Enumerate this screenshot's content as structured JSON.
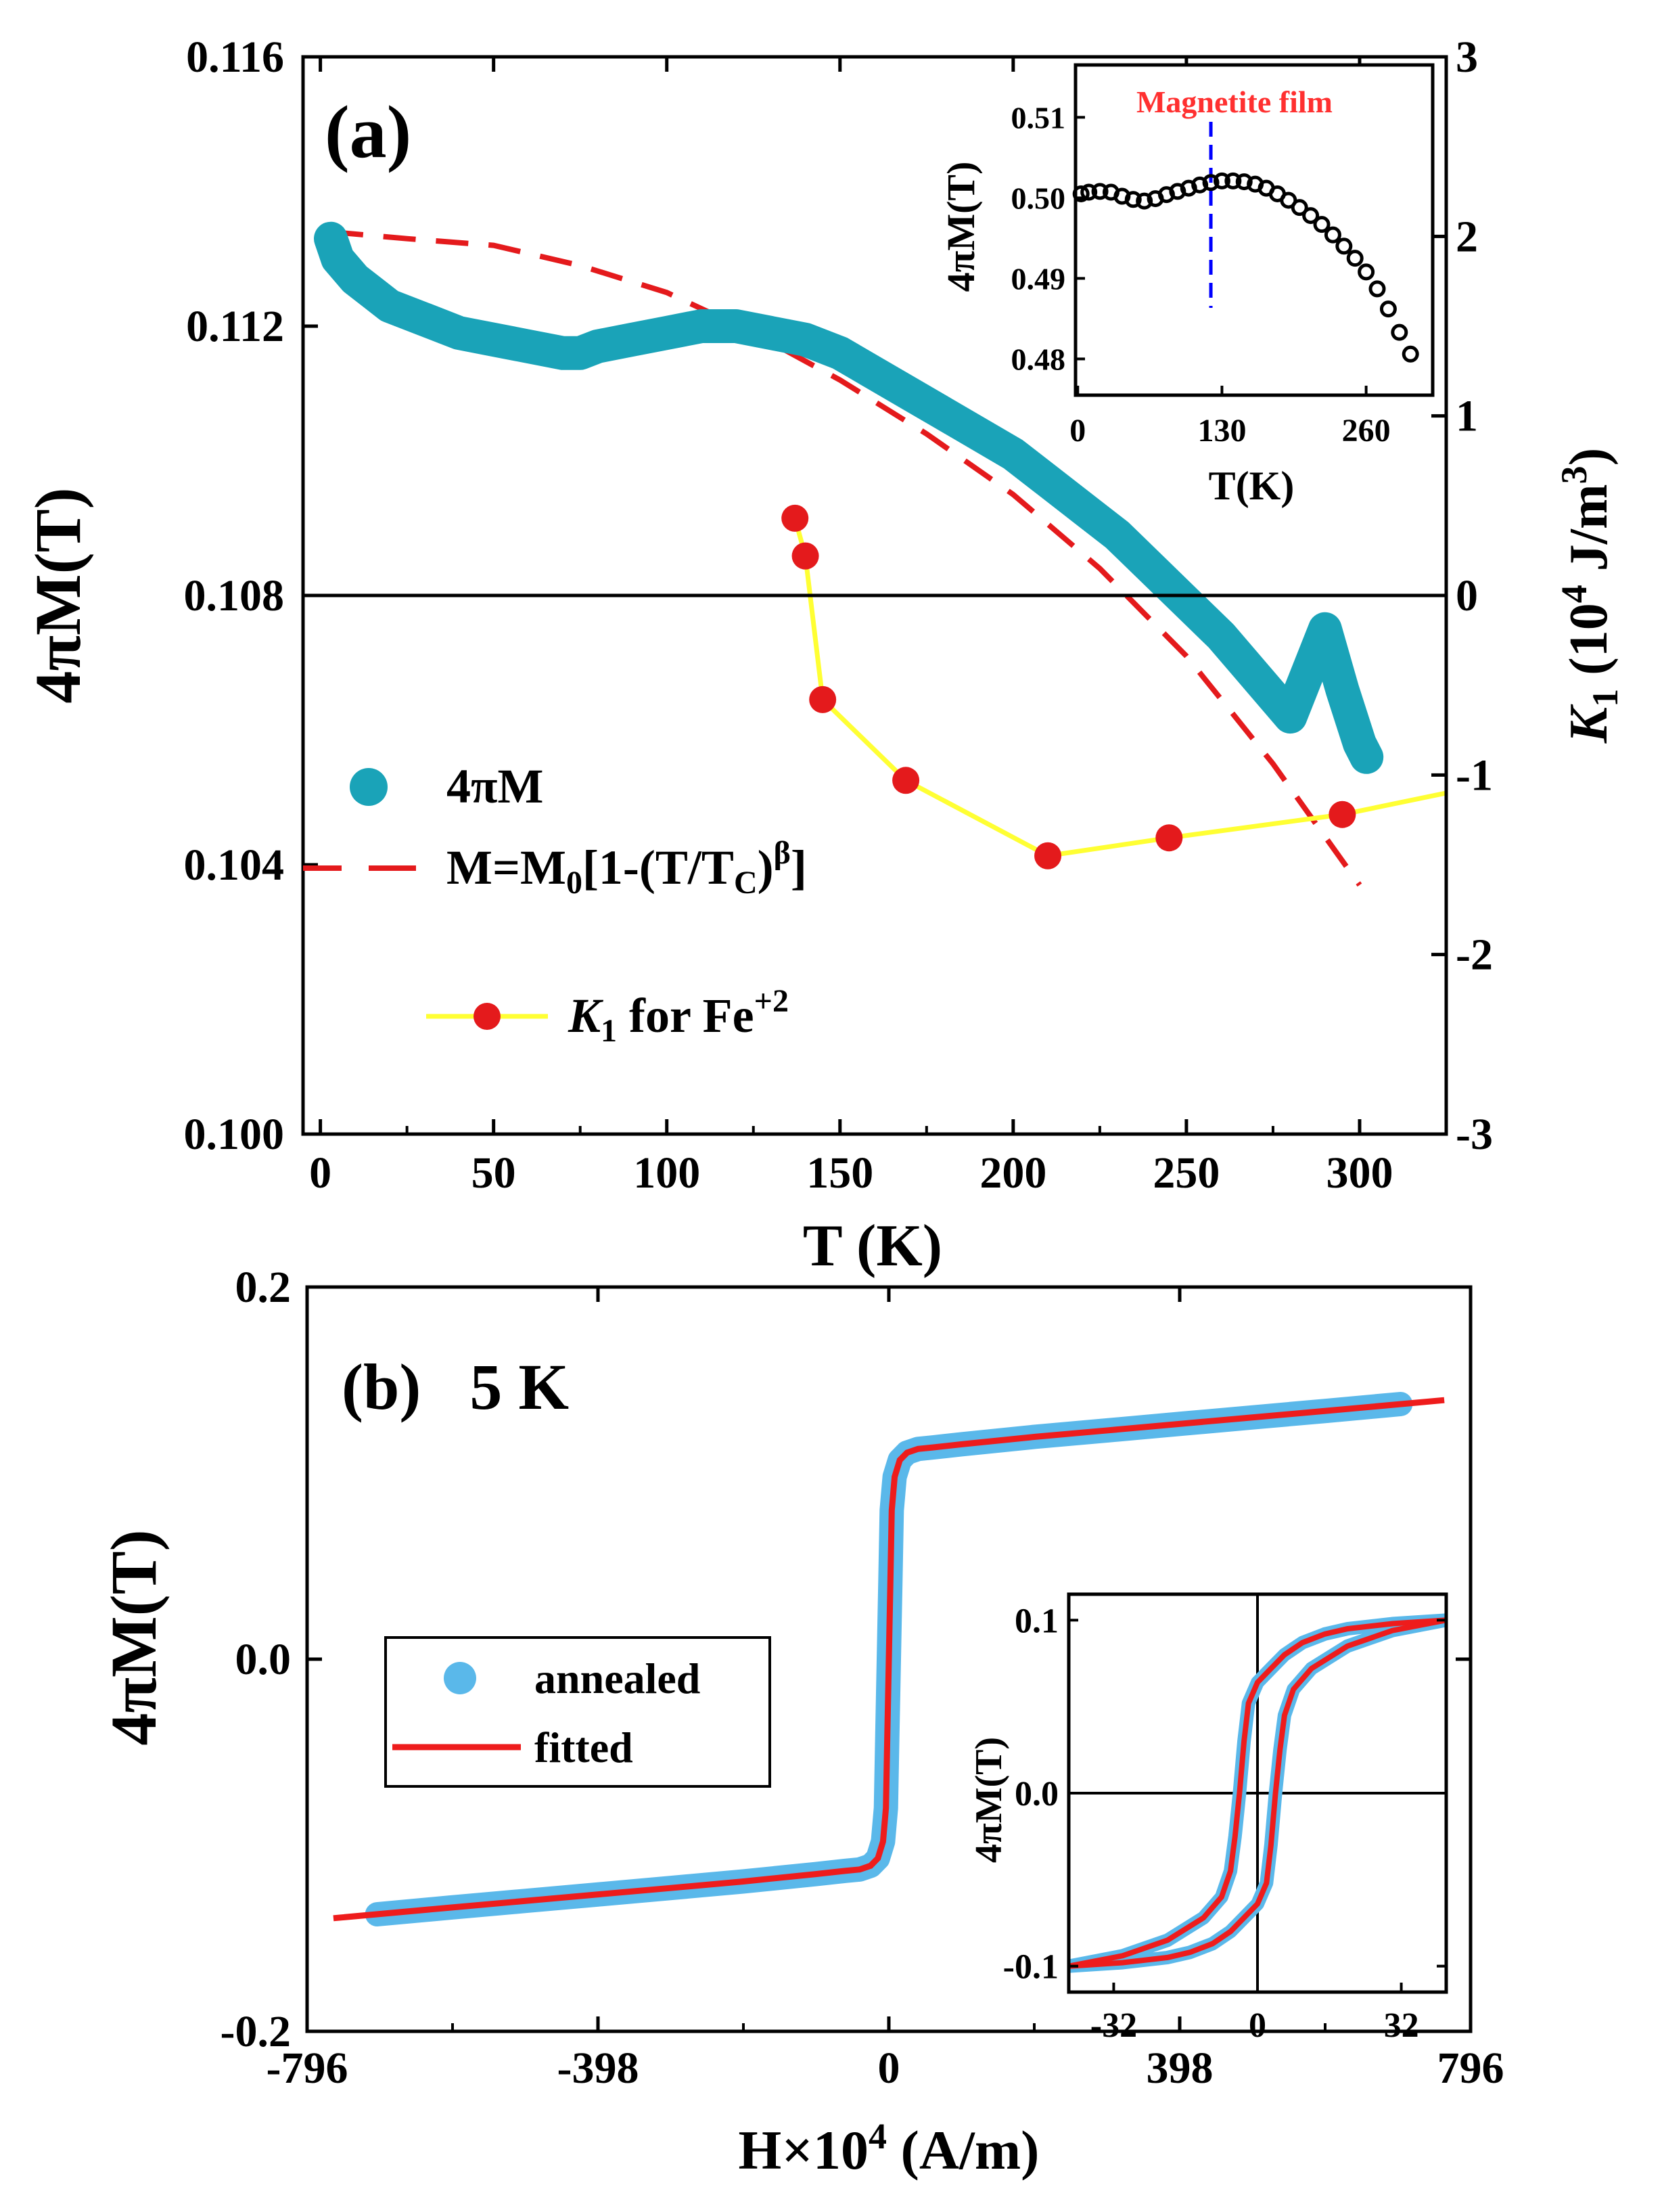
{
  "figure": {
    "colors": {
      "teal": "#1aa3b8",
      "red_dash": "#e41a1c",
      "k1_line": "#ffff33",
      "k1_marker": "#e41a1c",
      "annealed": "#5ab8ea",
      "fitted": "#ee1c1c",
      "inset_data": "#000000",
      "inset_line": "#0000ff",
      "inset_label": "#ff3030"
    }
  },
  "chart_data": [
    {
      "id": "panel-a",
      "type": "scatter",
      "panel_label": "(a)",
      "xlabel": "T (K)",
      "ylabel": "4πM(T)",
      "y2label": "K",
      "y2label_sub": "1",
      "y2label_unit": " (10",
      "y2label_exp": "4",
      "y2label_unit2": " J/m",
      "y2label_exp2": "3",
      "y2label_close": ")",
      "xlim": [
        -5,
        325
      ],
      "ylim": [
        0.1,
        0.116
      ],
      "y2lim": [
        -3,
        3
      ],
      "xticks": [
        0,
        50,
        100,
        150,
        200,
        250,
        300
      ],
      "xtick_labels": [
        "0",
        "50",
        "100",
        "150",
        "200",
        "250",
        "300"
      ],
      "yticks": [
        0.1,
        0.104,
        0.108,
        0.112,
        0.116
      ],
      "ytick_labels": [
        "0.100",
        "0.104",
        "0.108",
        "0.112",
        "0.116"
      ],
      "y2ticks": [
        -3,
        -2,
        -1,
        0,
        1,
        2,
        3
      ],
      "y2tick_labels": [
        "-3",
        "-2",
        "-1",
        "0",
        "1",
        "2",
        "3"
      ],
      "series": [
        {
          "name": "4πM",
          "kind": "thick-scatter",
          "x": [
            3,
            5,
            10,
            15,
            20,
            30,
            40,
            50,
            60,
            70,
            75,
            80,
            90,
            100,
            110,
            120,
            130,
            140,
            150,
            160,
            170,
            180,
            190,
            200,
            210,
            220,
            230,
            240,
            250,
            260,
            270,
            280,
            290,
            295,
            300,
            302
          ],
          "y": [
            0.1133,
            0.113,
            0.1127,
            0.1125,
            0.1123,
            0.1121,
            0.1119,
            0.1118,
            0.1117,
            0.1116,
            0.1116,
            0.1117,
            0.1118,
            0.1119,
            0.112,
            0.112,
            0.1119,
            0.1118,
            0.1116,
            0.1113,
            0.111,
            0.1107,
            0.1104,
            0.1101,
            0.1097,
            0.1093,
            0.1089,
            0.1084,
            0.1079,
            0.1074,
            0.1068,
            0.1062,
            0.1075,
            0.1066,
            0.1058,
            0.1056
          ]
        },
        {
          "name": "M=M0[1-(T/TC)^β]",
          "kind": "dashed-line",
          "x": [
            3,
            25,
            50,
            75,
            100,
            125,
            150,
            175,
            200,
            225,
            250,
            275,
            300
          ],
          "y": [
            0.1134,
            0.1133,
            0.1132,
            0.1129,
            0.1125,
            0.1119,
            0.1112,
            0.1104,
            0.1095,
            0.1084,
            0.1071,
            0.1055,
            0.1037
          ]
        },
        {
          "name": "K1 for Fe+2",
          "kind": "line-markers",
          "axis": "y2",
          "x": [
            137,
            140,
            145,
            169,
            210,
            245,
            295,
            325
          ],
          "y": [
            0.43,
            0.22,
            -0.58,
            -1.03,
            -1.45,
            -1.35,
            -1.22,
            -1.1
          ],
          "marker_count": 7
        }
      ],
      "legend": {
        "entries": [
          "4πM",
          "M=M",
          "0",
          "[1-(T/T",
          "C",
          ")",
          "β",
          "]",
          "K",
          "1",
          " for Fe",
          "+2"
        ]
      },
      "inset": {
        "annotation": "Magnetite film",
        "xlabel": "T(K)",
        "ylabel": "4πM(T)",
        "xlim": [
          -2,
          320
        ],
        "ylim": [
          0.4755,
          0.5165
        ],
        "xticks": [
          0,
          130,
          260
        ],
        "xtick_labels": [
          "0",
          "130",
          "260"
        ],
        "yticks": [
          0.48,
          0.49,
          0.5,
          0.51
        ],
        "ytick_labels": [
          "0.48",
          "0.49",
          "0.50",
          "0.51"
        ],
        "vline_x": 120,
        "data": {
          "x": [
            3,
            10,
            20,
            30,
            40,
            50,
            60,
            70,
            80,
            90,
            100,
            110,
            120,
            130,
            140,
            150,
            160,
            170,
            180,
            190,
            200,
            210,
            220,
            230,
            240,
            250,
            260,
            270,
            280,
            290,
            300
          ],
          "y": [
            0.5005,
            0.5007,
            0.5008,
            0.5007,
            0.5002,
            0.4998,
            0.4996,
            0.4999,
            0.5004,
            0.5008,
            0.5012,
            0.5016,
            0.5019,
            0.5021,
            0.5021,
            0.502,
            0.5017,
            0.5012,
            0.5005,
            0.4997,
            0.4988,
            0.4978,
            0.4967,
            0.4954,
            0.494,
            0.4925,
            0.4908,
            0.4887,
            0.4862,
            0.4833,
            0.4806
          ]
        }
      }
    },
    {
      "id": "panel-b",
      "type": "line",
      "panel_label": "(b)   5 K",
      "xlabel_pre": "H×10",
      "xlabel_exp": "4",
      "xlabel_post": " (A/m)",
      "ylabel": "4πM(T)",
      "xlim": [
        -796,
        796
      ],
      "ylim": [
        -0.2,
        0.2
      ],
      "xticks": [
        -796,
        -398,
        0,
        398,
        796
      ],
      "xtick_labels": [
        "-796",
        "-398",
        "0",
        "398",
        "796"
      ],
      "yticks": [
        -0.2,
        0.0,
        0.2
      ],
      "ytick_labels": [
        "-0.2",
        "0.0",
        "0.2"
      ],
      "series": [
        {
          "name": "annealed",
          "kind": "thick-scatter",
          "x": [
            -700,
            -600,
            -500,
            -400,
            -300,
            -200,
            -100,
            -60,
            -40,
            -25,
            -15,
            -8,
            -4,
            -2,
            0,
            2,
            4,
            8,
            15,
            25,
            40,
            60,
            100,
            200,
            300,
            400,
            500,
            600,
            700
          ],
          "y": [
            -0.1371,
            -0.1335,
            -0.13,
            -0.1265,
            -0.123,
            -0.1195,
            -0.1155,
            -0.1138,
            -0.113,
            -0.111,
            -0.107,
            -0.098,
            -0.08,
            -0.04,
            0.0,
            0.04,
            0.08,
            0.098,
            0.107,
            0.111,
            0.113,
            0.1138,
            0.1155,
            0.1195,
            0.123,
            0.1265,
            0.13,
            0.1335,
            0.1371
          ]
        },
        {
          "name": "fitted",
          "kind": "solid-line",
          "x": [
            -760,
            -600,
            -500,
            -400,
            -300,
            -200,
            -100,
            -60,
            -40,
            -25,
            -15,
            -8,
            -4,
            -2,
            0,
            2,
            4,
            8,
            15,
            25,
            40,
            60,
            100,
            200,
            300,
            400,
            500,
            600,
            760
          ],
          "y": [
            -0.1392,
            -0.1335,
            -0.13,
            -0.1265,
            -0.123,
            -0.1195,
            -0.1155,
            -0.1138,
            -0.113,
            -0.111,
            -0.107,
            -0.098,
            -0.08,
            -0.04,
            0.0,
            0.04,
            0.08,
            0.098,
            0.107,
            0.111,
            0.113,
            0.1138,
            0.1155,
            0.1195,
            0.123,
            0.1265,
            0.13,
            0.1335,
            0.1392
          ]
        }
      ],
      "legend": {
        "entries": [
          "annealed",
          "fitted"
        ]
      },
      "inset": {
        "ylabel": "4πM(T)",
        "xlim": [
          -42,
          42
        ],
        "ylim": [
          -0.115,
          0.115
        ],
        "xticks": [
          -32,
          0,
          32
        ],
        "xtick_labels": [
          "-32",
          "0",
          "32"
        ],
        "yticks": [
          -0.1,
          0.0,
          0.1
        ],
        "ytick_labels": [
          "-0.1",
          "0.0",
          "0.1"
        ],
        "upper_branch": {
          "x": [
            -42,
            -30,
            -20,
            -12,
            -8,
            -6,
            -5,
            -4,
            -3,
            -2,
            0,
            3,
            6,
            10,
            15,
            20,
            30,
            42
          ],
          "y": [
            -0.1,
            -0.094,
            -0.085,
            -0.072,
            -0.06,
            -0.045,
            -0.025,
            0.0,
            0.03,
            0.052,
            0.064,
            0.072,
            0.08,
            0.087,
            0.092,
            0.095,
            0.098,
            0.1
          ]
        },
        "lower_branch": {
          "x": [
            -42,
            -30,
            -20,
            -15,
            -10,
            -6,
            -3,
            0,
            2,
            3,
            4,
            5,
            6,
            8,
            12,
            20,
            30,
            42
          ],
          "y": [
            -0.1,
            -0.098,
            -0.095,
            -0.092,
            -0.087,
            -0.08,
            -0.072,
            -0.064,
            -0.052,
            -0.03,
            0.0,
            0.025,
            0.045,
            0.06,
            0.072,
            0.085,
            0.094,
            0.1
          ]
        }
      }
    }
  ]
}
